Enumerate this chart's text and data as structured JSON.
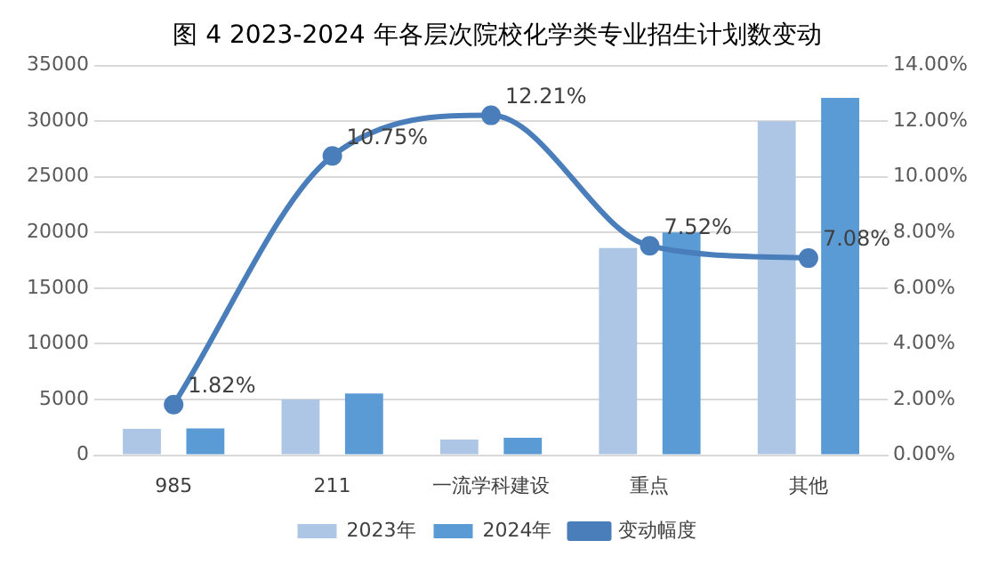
{
  "chart_data": {
    "type": "bar",
    "title": "图 4 2023-2024 年各层次院校化学类专业招生计划数变动",
    "categories": [
      "985",
      "211",
      "一流学科建设",
      "重点",
      "其他"
    ],
    "series": [
      {
        "name": "2023年",
        "color": "#aec6e6",
        "values": [
          2360,
          5000,
          1400,
          18600,
          30000
        ]
      },
      {
        "name": "2024年",
        "color": "#5b9bd5",
        "values": [
          2400,
          5540,
          1570,
          20000,
          32100
        ]
      },
      {
        "name": "变动幅度",
        "type": "line",
        "axis": "y2",
        "color": "#4a7ebb",
        "values": [
          1.82,
          10.75,
          12.21,
          7.52,
          7.08
        ],
        "value_labels": [
          "1.82%",
          "10.75%",
          "12.21%",
          "7.52%",
          "7.08%"
        ]
      }
    ],
    "ylim": [
      0,
      35000
    ],
    "yticks": [
      0,
      5000,
      10000,
      15000,
      20000,
      25000,
      30000,
      35000
    ],
    "y2lim": [
      0,
      14
    ],
    "y2ticks": [
      {
        "value": 0,
        "label": "0.00%"
      },
      {
        "value": 2,
        "label": "2.00%"
      },
      {
        "value": 4,
        "label": "4.00%"
      },
      {
        "value": 6,
        "label": "6.00%"
      },
      {
        "value": 8,
        "label": "8.00%"
      },
      {
        "value": 10,
        "label": "10.00%"
      },
      {
        "value": 12,
        "label": "12.00%"
      },
      {
        "value": 14,
        "label": "14.00%"
      }
    ],
    "grid": "y",
    "legend": "bottom",
    "marker": "circle",
    "line_style": "solid"
  }
}
